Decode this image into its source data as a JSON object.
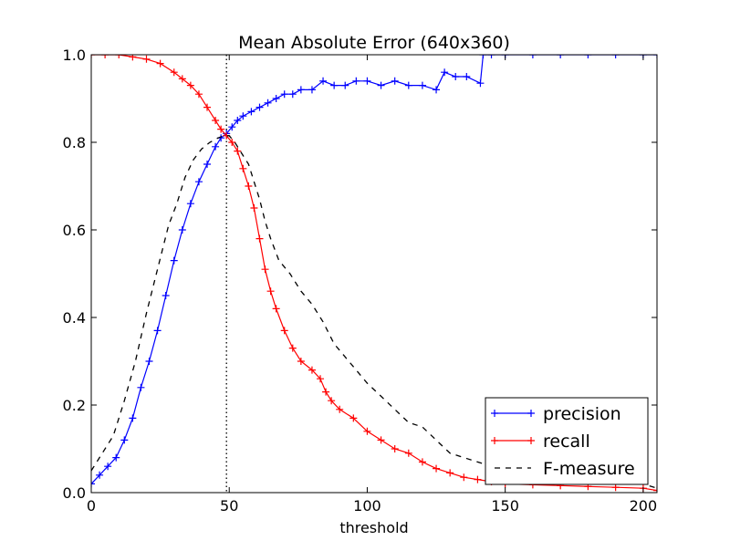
{
  "chart_data": {
    "type": "line",
    "title": "Mean Absolute Error (640x360)",
    "xlabel": "threshold",
    "ylabel": "",
    "xlim": [
      0,
      205
    ],
    "ylim": [
      0,
      1
    ],
    "xticks": [
      0,
      50,
      100,
      150,
      200
    ],
    "yticks": [
      0.0,
      0.2,
      0.4,
      0.6,
      0.8,
      1.0
    ],
    "xtick_labels": [
      "0",
      "50",
      "100",
      "150",
      "200"
    ],
    "ytick_labels": [
      "0.0",
      "0.2",
      "0.4",
      "0.6",
      "0.8",
      "1.0"
    ],
    "grid": false,
    "legend_position": "lower-right",
    "reference_line": {
      "x": 49,
      "style": "dotted",
      "color": "#000000"
    },
    "series": [
      {
        "name": "precision",
        "color": "#0000ff",
        "style": "solid",
        "marker": "plus",
        "x": [
          0,
          3,
          6,
          9,
          12,
          15,
          18,
          21,
          24,
          27,
          30,
          33,
          36,
          39,
          42,
          45,
          47,
          49,
          51,
          53,
          55,
          58,
          61,
          64,
          67,
          70,
          73,
          76,
          80,
          84,
          88,
          92,
          96,
          100,
          105,
          110,
          115,
          120,
          125,
          128,
          132,
          136,
          141,
          142,
          145,
          150,
          160,
          170,
          180,
          190,
          200,
          205
        ],
        "y": [
          0.02,
          0.04,
          0.06,
          0.08,
          0.12,
          0.17,
          0.24,
          0.3,
          0.37,
          0.45,
          0.53,
          0.6,
          0.66,
          0.71,
          0.75,
          0.79,
          0.81,
          0.82,
          0.835,
          0.85,
          0.86,
          0.87,
          0.88,
          0.89,
          0.9,
          0.91,
          0.91,
          0.92,
          0.92,
          0.94,
          0.93,
          0.93,
          0.94,
          0.94,
          0.93,
          0.94,
          0.93,
          0.93,
          0.92,
          0.96,
          0.95,
          0.95,
          0.935,
          1.0,
          1.0,
          1.0,
          1.0,
          1.0,
          1.0,
          1.0,
          1.0,
          1.0
        ]
      },
      {
        "name": "recall",
        "color": "#ff0000",
        "style": "solid",
        "marker": "plus",
        "x": [
          0,
          5,
          10,
          15,
          20,
          25,
          30,
          33,
          36,
          39,
          42,
          45,
          47,
          49,
          51,
          53,
          55,
          57,
          59,
          61,
          63,
          65,
          67,
          70,
          73,
          76,
          80,
          83,
          85,
          87,
          90,
          95,
          100,
          105,
          110,
          115,
          120,
          125,
          130,
          135,
          140,
          145,
          150,
          160,
          170,
          180,
          190,
          200,
          205
        ],
        "y": [
          1.0,
          1.0,
          1.0,
          0.995,
          0.99,
          0.98,
          0.96,
          0.945,
          0.93,
          0.91,
          0.88,
          0.85,
          0.83,
          0.815,
          0.8,
          0.78,
          0.74,
          0.7,
          0.65,
          0.58,
          0.51,
          0.46,
          0.42,
          0.37,
          0.33,
          0.3,
          0.28,
          0.26,
          0.23,
          0.21,
          0.19,
          0.17,
          0.14,
          0.12,
          0.1,
          0.09,
          0.07,
          0.055,
          0.045,
          0.035,
          0.03,
          0.025,
          0.02,
          0.018,
          0.016,
          0.014,
          0.012,
          0.01,
          0.005
        ]
      },
      {
        "name": "F-measure",
        "color": "#000000",
        "style": "dashed",
        "marker": "none",
        "x": [
          0,
          4,
          8,
          12,
          16,
          20,
          24,
          28,
          31,
          34,
          37,
          40,
          43,
          46,
          48,
          50,
          52,
          55,
          57,
          59,
          61,
          63,
          65,
          68,
          72,
          76,
          80,
          84,
          88,
          92,
          96,
          100,
          105,
          110,
          115,
          120,
          125,
          130,
          135,
          140,
          145,
          150,
          160,
          170,
          180,
          190,
          200,
          205
        ],
        "y": [
          0.05,
          0.09,
          0.13,
          0.21,
          0.3,
          0.41,
          0.51,
          0.61,
          0.66,
          0.72,
          0.76,
          0.785,
          0.8,
          0.81,
          0.815,
          0.815,
          0.8,
          0.77,
          0.75,
          0.71,
          0.67,
          0.62,
          0.58,
          0.53,
          0.5,
          0.46,
          0.43,
          0.39,
          0.34,
          0.31,
          0.28,
          0.25,
          0.22,
          0.19,
          0.16,
          0.15,
          0.12,
          0.09,
          0.08,
          0.07,
          0.06,
          0.05,
          0.04,
          0.035,
          0.03,
          0.025,
          0.02,
          0.01
        ]
      }
    ]
  }
}
